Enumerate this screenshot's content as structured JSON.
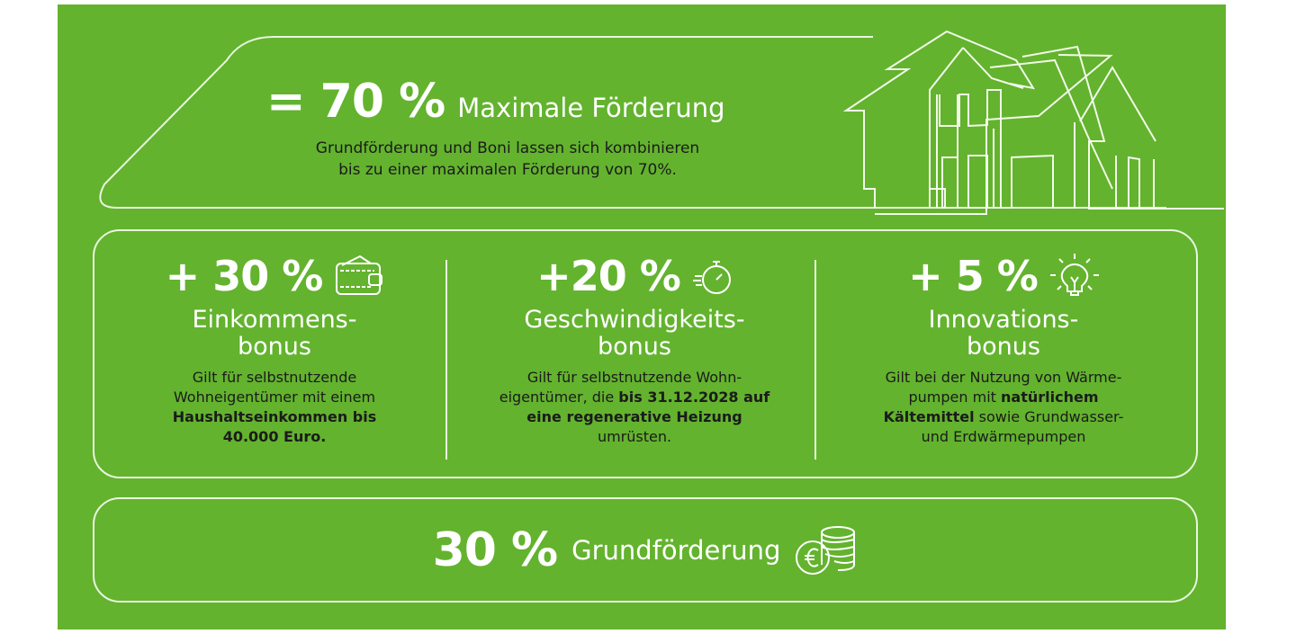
{
  "colors": {
    "background": "#63b32e",
    "text_light": "#ffffff",
    "text_dark": "#1b1b1b"
  },
  "max": {
    "value": "= 70 %",
    "title": "Maximale Förderung",
    "line1": "Grundförderung und Boni lassen sich kombinieren",
    "line2": "bis zu einer maximalen Förderung von 70%.",
    "icon": "house-outline-icon"
  },
  "bonuses": [
    {
      "value": "+ 30 %",
      "icon": "wallet-icon",
      "title1": "Einkommens-",
      "title2": "bonus",
      "desc": [
        {
          "t": "Gilt für selbstnutzende",
          "b": ""
        },
        {
          "t": "Wohneigentümer mit einem",
          "b": ""
        },
        {
          "t": "",
          "b": "Haushaltseinkommen bis"
        },
        {
          "t": "",
          "b": "40.000 Euro."
        }
      ]
    },
    {
      "value": "+20 %",
      "icon": "stopwatch-icon",
      "title1": "Geschwindigkeits-",
      "title2": "bonus",
      "desc": [
        {
          "t": "Gilt für selbstnutzende Wohn-",
          "b": ""
        },
        {
          "t": "eigentümer, die ",
          "b": "bis 31.12.2028 auf"
        },
        {
          "t": "",
          "b": "eine regenerative Heizung"
        },
        {
          "t": "umrüsten.",
          "b": ""
        }
      ]
    },
    {
      "value": "+ 5 %",
      "icon": "lightbulb-icon",
      "title1": "Innovations-",
      "title2": "bonus",
      "desc": [
        {
          "t": "Gilt bei der Nutzung von Wärme-",
          "b": ""
        },
        {
          "t": "pumpen mit ",
          "b": "natürlichem"
        },
        {
          "t": "",
          "b": "Kältemittel",
          "t2": " sowie Grundwasser-"
        },
        {
          "t": "und Erdwärmepumpen",
          "b": ""
        }
      ]
    }
  ],
  "base": {
    "value": "30 %",
    "title": "Grundförderung",
    "icon": "euro-coins-icon"
  }
}
